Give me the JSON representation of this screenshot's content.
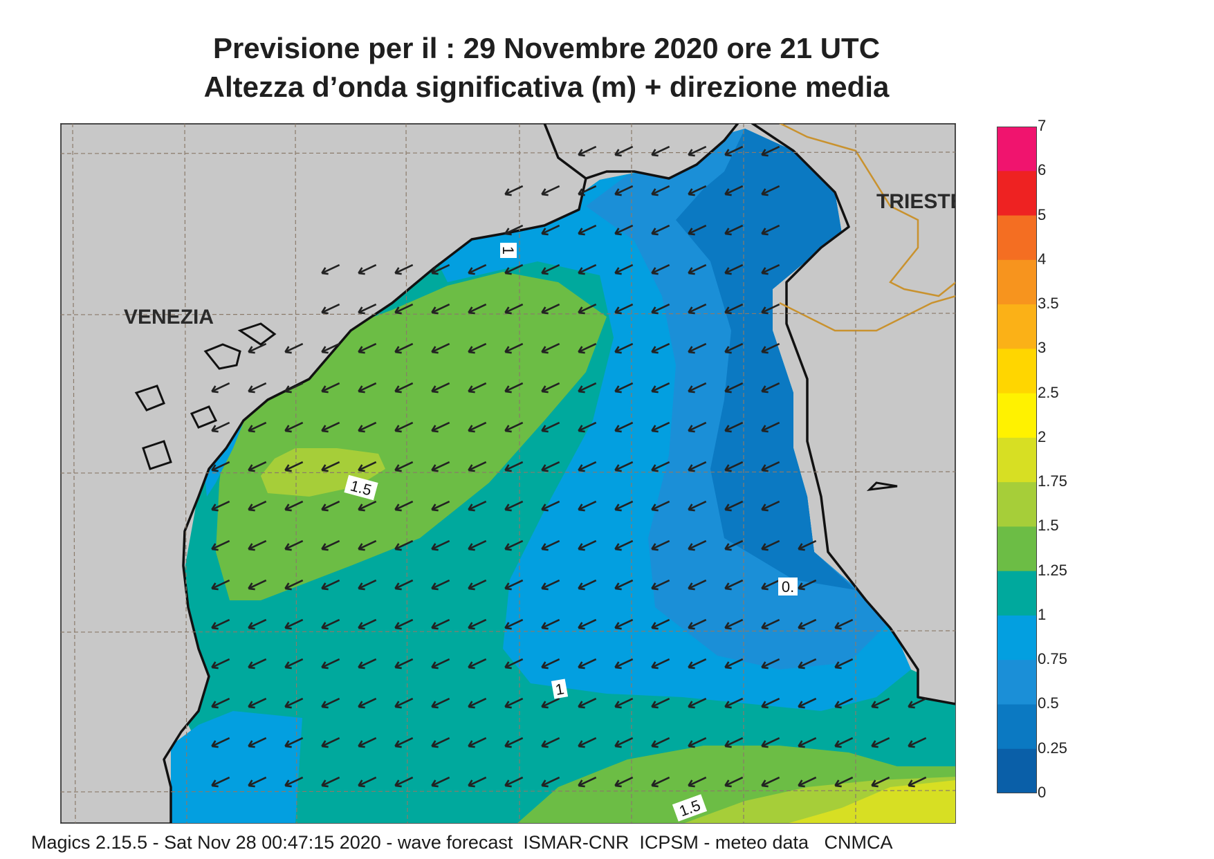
{
  "header": {
    "title_line1": "Previsione per il  :  29 Novembre  2020   ore 21 UTC",
    "title_line2": "Altezza d’onda significativa (m) + direzione media"
  },
  "map": {
    "places": [
      "VENEZIA",
      "TRIESTE"
    ],
    "contour_labels": [
      "1",
      "1.5",
      "0.",
      "1",
      "1.5"
    ],
    "wave_direction": "towards south-west",
    "colors": {
      "land": "#c8c8c8",
      "coastline": "#111111",
      "border": "#c9922e",
      "grid": "#8a7a6a"
    }
  },
  "legend": {
    "levels": [
      {
        "value": "7",
        "color": null
      },
      {
        "value": "6",
        "color": "#f0146e"
      },
      {
        "value": "5",
        "color": "#ee2222"
      },
      {
        "value": "4",
        "color": "#f46e22"
      },
      {
        "value": "3.5",
        "color": "#f7941e"
      },
      {
        "value": "3",
        "color": "#fbb117"
      },
      {
        "value": "2.5",
        "color": "#ffd600"
      },
      {
        "value": "2",
        "color": "#fff200"
      },
      {
        "value": "1.75",
        "color": "#d7df23"
      },
      {
        "value": "1.5",
        "color": "#a6ce39"
      },
      {
        "value": "1.25",
        "color": "#6cbd45"
      },
      {
        "value": "1",
        "color": "#00a99d"
      },
      {
        "value": "0.75",
        "color": "#039fe0"
      },
      {
        "value": "0.5",
        "color": "#1b8fd7"
      },
      {
        "value": "0.25",
        "color": "#0b79c2"
      },
      {
        "value": "0",
        "color": "#0a5fa8"
      }
    ]
  },
  "footer": {
    "text": "Magics 2.15.5 - Sat Nov 28 00:47:15 2020 - wave forecast  ISMAR-CNR  ICPSM - meteo data   CNMCA"
  }
}
